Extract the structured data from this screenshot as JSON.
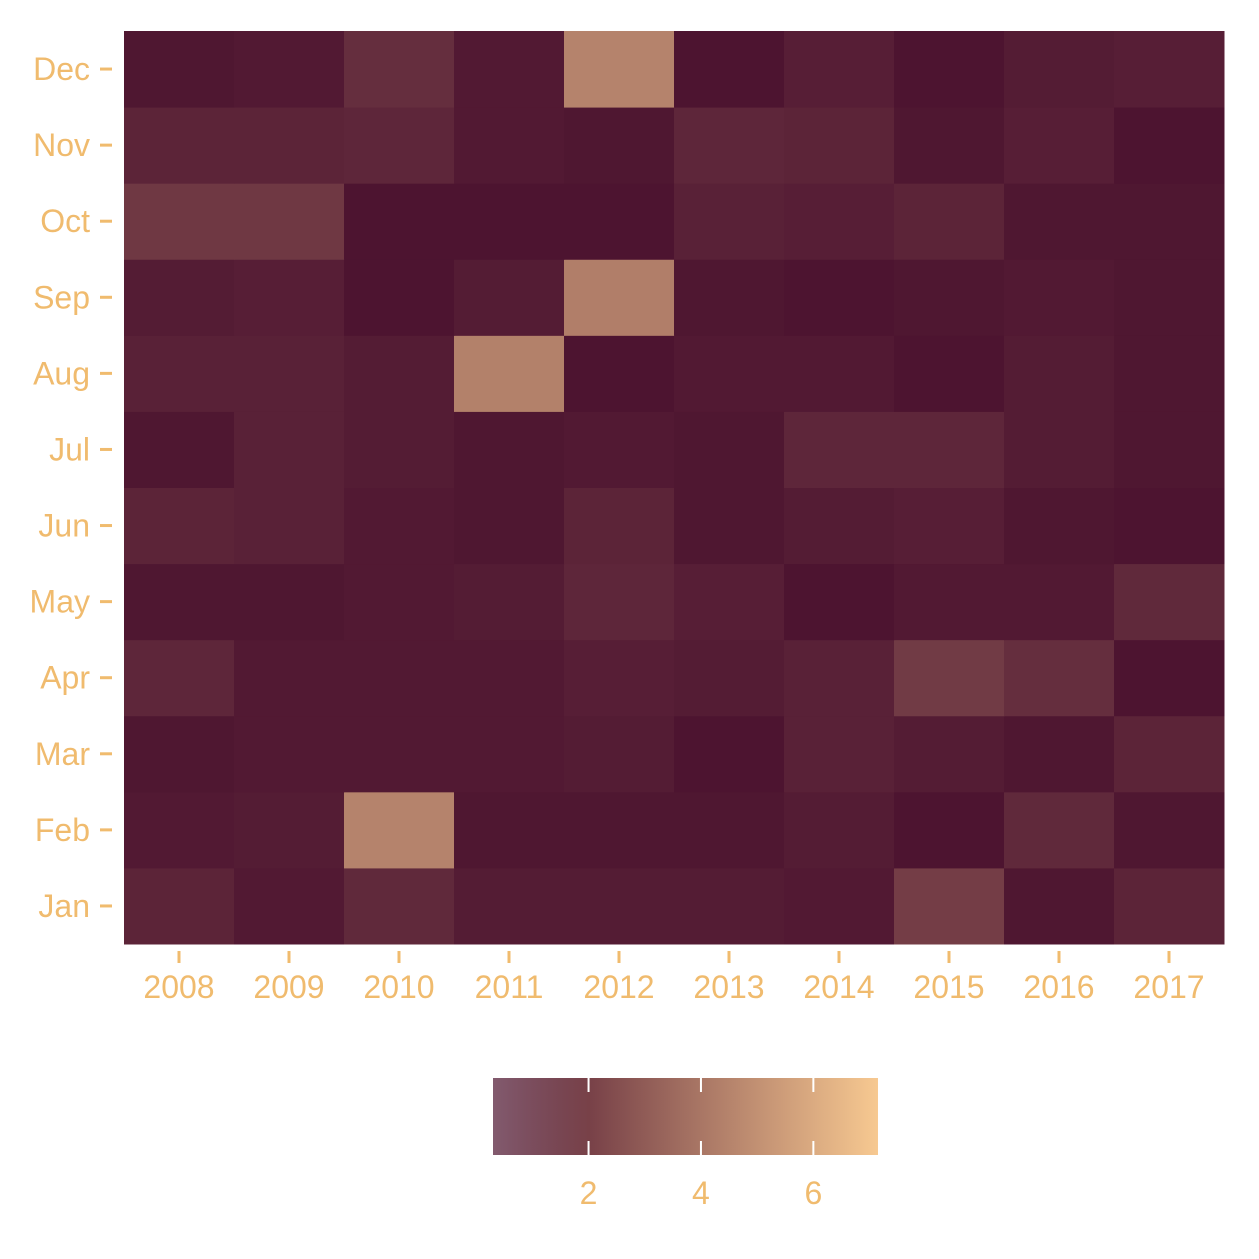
{
  "chart_data": {
    "type": "heatmap",
    "title": "",
    "xlabel": "",
    "ylabel": "",
    "x": [
      "2008",
      "2009",
      "2010",
      "2011",
      "2012",
      "2013",
      "2014",
      "2015",
      "2016",
      "2017"
    ],
    "y": [
      "Jan",
      "Feb",
      "Mar",
      "Apr",
      "May",
      "Jun",
      "Jul",
      "Aug",
      "Sep",
      "Oct",
      "Nov",
      "Dec"
    ],
    "values": [
      [
        0.6,
        0.2,
        0.8,
        0.3,
        0.3,
        0.3,
        0.2,
        1.6,
        0.1,
        0.6
      ],
      [
        0.2,
        0.3,
        4.3,
        0.1,
        0.1,
        0.1,
        0.3,
        0.0,
        0.8,
        0.1
      ],
      [
        0.1,
        0.2,
        0.2,
        0.2,
        0.3,
        0.0,
        0.5,
        0.3,
        0.1,
        0.6
      ],
      [
        0.7,
        0.2,
        0.2,
        0.2,
        0.4,
        0.3,
        0.5,
        1.5,
        1.0,
        0.0
      ],
      [
        0.1,
        0.1,
        0.2,
        0.3,
        0.7,
        0.4,
        0.0,
        0.2,
        0.2,
        0.8
      ],
      [
        0.6,
        0.5,
        0.2,
        0.1,
        0.6,
        0.1,
        0.3,
        0.4,
        0.1,
        0.0
      ],
      [
        0.1,
        0.5,
        0.3,
        0.1,
        0.2,
        0.1,
        0.7,
        0.7,
        0.3,
        0.1
      ],
      [
        0.5,
        0.5,
        0.3,
        4.2,
        0.0,
        0.2,
        0.2,
        0.0,
        0.3,
        0.1
      ],
      [
        0.3,
        0.4,
        0.0,
        0.3,
        4.1,
        0.1,
        0.0,
        0.1,
        0.2,
        0.1
      ],
      [
        1.4,
        1.4,
        0.0,
        0.0,
        0.0,
        0.5,
        0.4,
        0.6,
        0.1,
        0.1
      ],
      [
        0.6,
        0.6,
        0.7,
        0.2,
        0.1,
        0.7,
        0.6,
        0.1,
        0.4,
        0.0
      ],
      [
        0.1,
        0.2,
        1.0,
        0.2,
        4.3,
        0.0,
        0.4,
        0.0,
        0.3,
        0.4
      ]
    ],
    "color_scale": {
      "min": 0,
      "max": 7,
      "low_color": "#4d1430",
      "high_color": "#f7c991",
      "legend_ticks": [
        2,
        4,
        6
      ]
    },
    "legend_position": "bottom",
    "grid": false
  },
  "colors": {
    "text": "#f0bb6e",
    "tick": "#f0bb6e",
    "background": "#ffffff"
  }
}
